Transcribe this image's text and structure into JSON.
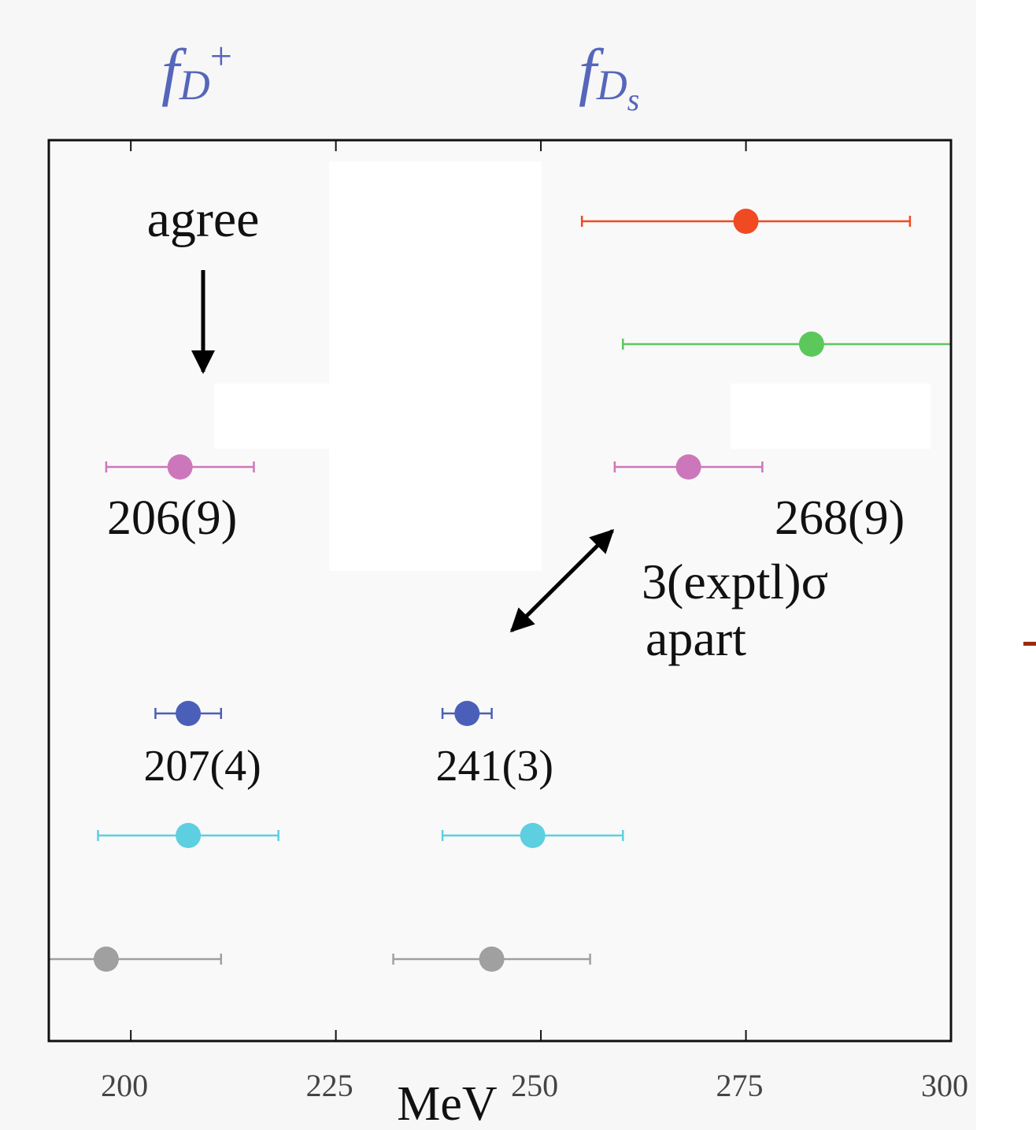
{
  "chart_data": {
    "type": "errorbar",
    "column_headers": [
      {
        "symbol": "f",
        "subscript": "D",
        "superscript": "+"
      },
      {
        "symbol": "f",
        "subscript": "D",
        "subsubscript": "s"
      }
    ],
    "x_label": "MeV",
    "xlim": [
      190,
      300
    ],
    "xticks": [
      200,
      225,
      250,
      275,
      300
    ],
    "series": [
      {
        "color": "#f04a23",
        "values": [
          null,
          275
        ],
        "errors": [
          null,
          20
        ]
      },
      {
        "color": "#5cc85c",
        "values": [
          null,
          283
        ],
        "errors": [
          null,
          23
        ]
      },
      {
        "color": "#cc77bb",
        "values": [
          206,
          268
        ],
        "errors": [
          9,
          9
        ],
        "value_labels": [
          "206(9)",
          "268(9)"
        ]
      },
      {
        "color": "#4a5fb8",
        "values": [
          207,
          241
        ],
        "errors": [
          4,
          3
        ],
        "value_labels": [
          "207(4)",
          "241(3)"
        ]
      },
      {
        "color": "#5dcfe0",
        "values": [
          207,
          249
        ],
        "errors": [
          11,
          11
        ]
      },
      {
        "color": "#a0a0a0",
        "values": [
          197,
          244
        ],
        "errors": [
          14,
          12
        ]
      }
    ],
    "annotations": [
      "agree",
      "3(exptl)σ",
      "apart"
    ]
  }
}
